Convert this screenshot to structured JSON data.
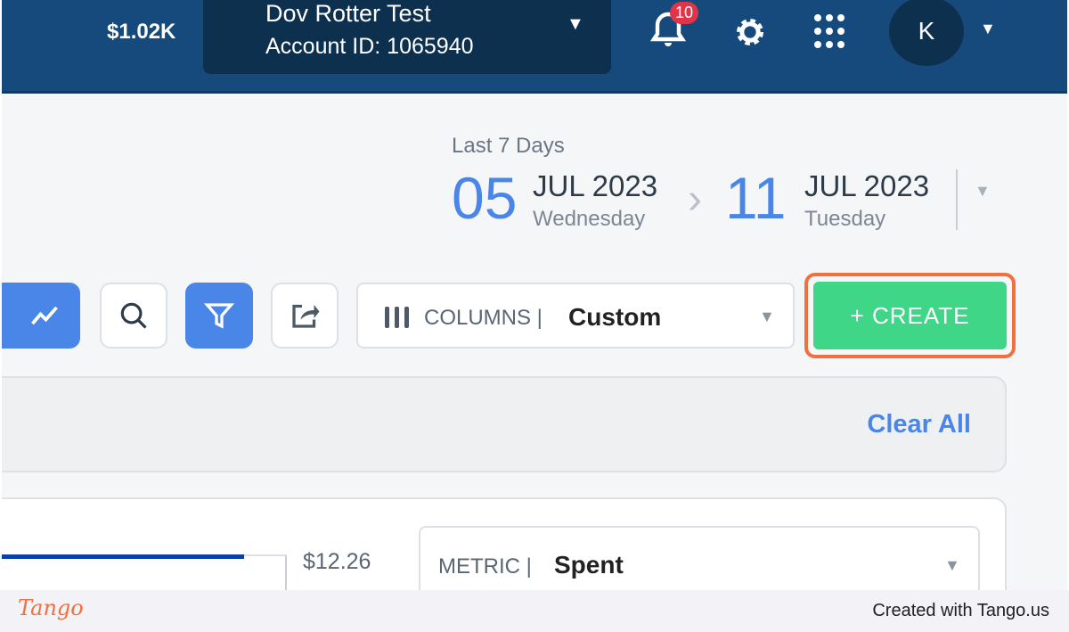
{
  "header": {
    "balance": "$1.02K",
    "account_name": "Dov Rotter Test",
    "account_id": "Account ID: 1065940",
    "notifications": "10",
    "avatar": "K"
  },
  "date_range": {
    "label": "Last 7 Days",
    "start_day": "05",
    "start_month": "JUL 2023",
    "start_weekday": "Wednesday",
    "end_day": "11",
    "end_month": "JUL 2023",
    "end_weekday": "Tuesday"
  },
  "toolbar": {
    "columns_label": "COLUMNS",
    "columns_value": "Custom",
    "create_label": "+  CREATE",
    "accent": "#4a86e8",
    "create_color": "#3fd687"
  },
  "filters": {
    "clear_all": "Clear All"
  },
  "chart": {
    "value": "$12.26",
    "metric_label": "METRIC",
    "metric_value": "Spent"
  },
  "footer": {
    "brand": "Tango",
    "credit": "Created with Tango.us"
  }
}
